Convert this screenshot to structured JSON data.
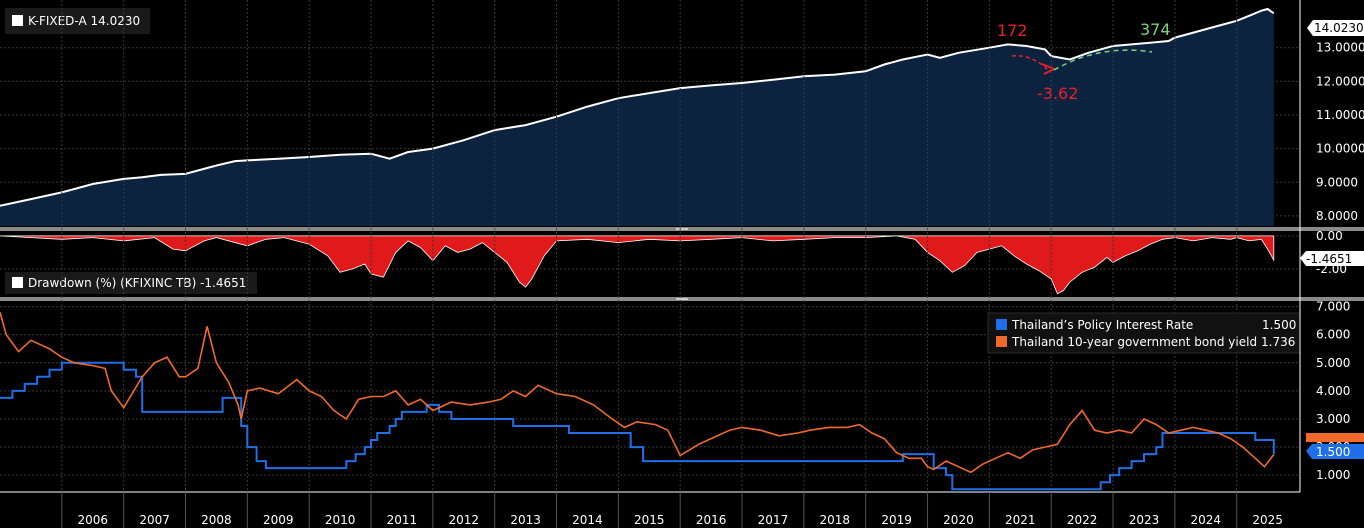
{
  "chart_data": [
    {
      "type": "area",
      "title": "K-FIXED-A 14.0230",
      "last_value_label": "14.0230",
      "ylim": [
        7.7,
        14.3
      ],
      "yticks": [
        "8.0000",
        "9.0000",
        "10.0000",
        "11.0000",
        "12.0000",
        "13.0000"
      ],
      "x": [
        2005.0,
        2005.5,
        2006.0,
        2006.5,
        2007.0,
        2007.3,
        2007.6,
        2008.0,
        2008.5,
        2008.8,
        2009.0,
        2009.5,
        2010.0,
        2010.5,
        2011.0,
        2011.3,
        2011.6,
        2012.0,
        2012.5,
        2013.0,
        2013.5,
        2014.0,
        2014.5,
        2015.0,
        2015.5,
        2016.0,
        2016.5,
        2017.0,
        2017.5,
        2018.0,
        2018.5,
        2019.0,
        2019.3,
        2019.6,
        2020.0,
        2020.2,
        2020.5,
        2021.0,
        2021.3,
        2021.6,
        2021.9,
        2022.0,
        2022.3,
        2022.6,
        2022.9,
        2023.0,
        2023.3,
        2023.6,
        2023.9,
        2024.0,
        2024.3,
        2024.6,
        2024.9,
        2025.0,
        2025.2,
        2025.4,
        2025.5,
        2025.6
      ],
      "values": [
        8.3,
        8.5,
        8.7,
        8.95,
        9.1,
        9.15,
        9.22,
        9.25,
        9.5,
        9.63,
        9.65,
        9.7,
        9.75,
        9.82,
        9.85,
        9.7,
        9.9,
        10.0,
        10.25,
        10.55,
        10.7,
        10.95,
        11.25,
        11.5,
        11.65,
        11.8,
        11.88,
        11.95,
        12.05,
        12.15,
        12.2,
        12.3,
        12.5,
        12.65,
        12.8,
        12.7,
        12.85,
        13.0,
        13.1,
        13.05,
        12.95,
        12.75,
        12.65,
        12.85,
        13.0,
        13.05,
        13.1,
        13.15,
        13.2,
        13.3,
        13.45,
        13.6,
        13.75,
        13.8,
        13.95,
        14.1,
        14.15,
        14.023
      ],
      "annotations": [
        {
          "text": "172",
          "color": "#e8202a"
        },
        {
          "text": "-3.62",
          "color": "#e8202a"
        },
        {
          "text": "374",
          "color": "#7cd27c"
        }
      ]
    },
    {
      "type": "area",
      "title": "Drawdown (%) (KFIXINC TB) -1.4651",
      "last_value_label": "-1.4651",
      "ylim": [
        -3.7,
        0.3
      ],
      "yticks": [
        "0.00",
        "-2.00"
      ],
      "x": [
        2005.0,
        2006.0,
        2006.5,
        2007.0,
        2007.5,
        2007.8,
        2008.0,
        2008.3,
        2008.5,
        2009.0,
        2009.3,
        2009.6,
        2010.0,
        2010.3,
        2010.5,
        2010.7,
        2010.9,
        2011.0,
        2011.2,
        2011.4,
        2011.6,
        2011.8,
        2012.0,
        2012.2,
        2012.4,
        2012.6,
        2012.8,
        2013.0,
        2013.2,
        2013.4,
        2013.5,
        2013.6,
        2013.8,
        2014.0,
        2014.5,
        2015.0,
        2015.5,
        2016.0,
        2016.5,
        2017.0,
        2017.5,
        2018.0,
        2018.5,
        2019.0,
        2019.5,
        2019.8,
        2020.0,
        2020.2,
        2020.4,
        2020.6,
        2020.8,
        2021.0,
        2021.2,
        2021.4,
        2021.6,
        2021.8,
        2022.0,
        2022.1,
        2022.2,
        2022.3,
        2022.5,
        2022.7,
        2022.9,
        2023.0,
        2023.2,
        2023.4,
        2023.6,
        2023.8,
        2024.0,
        2024.3,
        2024.6,
        2024.9,
        2025.0,
        2025.2,
        2025.4,
        2025.5,
        2025.6
      ],
      "values": [
        0,
        -0.2,
        -0.1,
        -0.3,
        -0.1,
        -0.8,
        -0.9,
        -0.3,
        -0.1,
        -0.6,
        -0.2,
        -0.1,
        -0.5,
        -1.2,
        -2.2,
        -2.0,
        -1.7,
        -2.3,
        -2.5,
        -1.0,
        -0.3,
        -0.7,
        -1.5,
        -0.6,
        -1.0,
        -0.8,
        -0.4,
        -1.0,
        -1.6,
        -2.8,
        -3.1,
        -2.6,
        -1.2,
        -0.3,
        -0.2,
        -0.4,
        -0.2,
        -0.3,
        -0.2,
        -0.1,
        -0.3,
        -0.2,
        -0.1,
        -0.1,
        0,
        -0.2,
        -1.0,
        -1.5,
        -2.2,
        -1.8,
        -1.0,
        -0.8,
        -0.6,
        -1.2,
        -1.7,
        -2.1,
        -2.6,
        -3.5,
        -3.3,
        -2.8,
        -2.2,
        -1.9,
        -1.3,
        -1.6,
        -1.2,
        -0.9,
        -0.5,
        -0.2,
        -0.1,
        -0.3,
        -0.1,
        -0.2,
        -0.1,
        -0.3,
        -0.2,
        -0.8,
        -1.465
      ]
    },
    {
      "type": "line",
      "legend_placement": "top-right",
      "ylim": [
        0.4,
        7.2
      ],
      "yticks": [
        "1.000",
        "2.000",
        "3.000",
        "4.000",
        "5.000",
        "6.000",
        "7.000"
      ],
      "xticks": [
        "2006",
        "2007",
        "2008",
        "2009",
        "2010",
        "2011",
        "2012",
        "2013",
        "2014",
        "2015",
        "2016",
        "2017",
        "2018",
        "2019",
        "2020",
        "2021",
        "2022",
        "2023",
        "2024",
        "2025"
      ],
      "xlim": [
        2005.0,
        2025.7
      ],
      "series": [
        {
          "name": "Thailand’s Policy Interest Rate",
          "last_value": "1.500",
          "color": "#1f6fe8",
          "step": true,
          "x": [
            2005.0,
            2005.2,
            2005.4,
            2005.6,
            2005.8,
            2006.0,
            2006.3,
            2006.8,
            2007.0,
            2007.2,
            2007.3,
            2008.0,
            2008.6,
            2008.9,
            2009.0,
            2009.15,
            2009.3,
            2010.0,
            2010.5,
            2010.6,
            2010.75,
            2010.9,
            2011.0,
            2011.1,
            2011.3,
            2011.4,
            2011.5,
            2011.9,
            2012.1,
            2012.3,
            2013.3,
            2014.2,
            2015.2,
            2015.4,
            2019.3,
            2019.6,
            2020.1,
            2020.3,
            2020.4,
            2022.6,
            2022.8,
            2022.95,
            2023.1,
            2023.3,
            2023.5,
            2023.7,
            2023.8,
            2025.0,
            2025.3,
            2025.6
          ],
          "values": [
            3.75,
            4.0,
            4.25,
            4.5,
            4.75,
            5.0,
            5.0,
            5.0,
            4.75,
            4.5,
            3.25,
            3.25,
            3.75,
            2.75,
            2.0,
            1.5,
            1.25,
            1.25,
            1.25,
            1.5,
            1.75,
            2.0,
            2.25,
            2.5,
            2.75,
            3.0,
            3.25,
            3.5,
            3.25,
            3.0,
            2.75,
            2.5,
            2.0,
            1.5,
            1.5,
            1.75,
            1.25,
            1.0,
            0.5,
            0.5,
            0.75,
            1.0,
            1.25,
            1.5,
            1.75,
            2.0,
            2.5,
            2.5,
            2.25,
            1.75
          ]
        },
        {
          "name": "Thailand 10-year government bond yield",
          "last_value": "1.736",
          "color": "#f06a2b",
          "step": false,
          "x": [
            2005.0,
            2005.1,
            2005.3,
            2005.5,
            2005.8,
            2006.0,
            2006.2,
            2006.5,
            2006.7,
            2006.8,
            2007.0,
            2007.3,
            2007.5,
            2007.7,
            2007.9,
            2008.0,
            2008.2,
            2008.35,
            2008.5,
            2008.7,
            2008.85,
            2008.9,
            2009.0,
            2009.2,
            2009.5,
            2009.8,
            2010.0,
            2010.2,
            2010.4,
            2010.6,
            2010.8,
            2011.0,
            2011.2,
            2011.4,
            2011.6,
            2011.8,
            2012.0,
            2012.3,
            2012.6,
            2012.9,
            2013.1,
            2013.3,
            2013.5,
            2013.7,
            2014.0,
            2014.3,
            2014.6,
            2014.9,
            2015.1,
            2015.3,
            2015.6,
            2015.8,
            2016.0,
            2016.3,
            2016.5,
            2016.8,
            2017.0,
            2017.3,
            2017.6,
            2017.9,
            2018.1,
            2018.4,
            2018.7,
            2018.9,
            2019.1,
            2019.3,
            2019.5,
            2019.7,
            2019.9,
            2020.0,
            2020.1,
            2020.3,
            2020.5,
            2020.7,
            2020.9,
            2021.1,
            2021.3,
            2021.5,
            2021.7,
            2021.9,
            2022.1,
            2022.3,
            2022.5,
            2022.7,
            2022.9,
            2023.1,
            2023.3,
            2023.5,
            2023.7,
            2023.9,
            2024.1,
            2024.3,
            2024.5,
            2024.7,
            2024.9,
            2025.1,
            2025.3,
            2025.45,
            2025.6
          ],
          "values": [
            6.8,
            6.0,
            5.4,
            5.8,
            5.5,
            5.2,
            5.0,
            4.9,
            4.8,
            4.0,
            3.4,
            4.5,
            5.0,
            5.2,
            4.5,
            4.5,
            4.8,
            6.3,
            5.0,
            4.3,
            3.5,
            3.0,
            4.0,
            4.1,
            3.9,
            4.4,
            4.0,
            3.8,
            3.3,
            3.0,
            3.7,
            3.8,
            3.8,
            4.0,
            3.5,
            3.7,
            3.3,
            3.6,
            3.5,
            3.6,
            3.7,
            4.0,
            3.8,
            4.2,
            3.9,
            3.8,
            3.5,
            3.0,
            2.7,
            2.9,
            2.8,
            2.6,
            1.7,
            2.1,
            2.3,
            2.6,
            2.7,
            2.6,
            2.4,
            2.5,
            2.6,
            2.7,
            2.7,
            2.8,
            2.5,
            2.3,
            1.8,
            1.6,
            1.6,
            1.3,
            1.2,
            1.5,
            1.3,
            1.1,
            1.4,
            1.6,
            1.8,
            1.6,
            1.9,
            2.0,
            2.1,
            2.8,
            3.3,
            2.6,
            2.5,
            2.6,
            2.5,
            3.0,
            2.8,
            2.5,
            2.6,
            2.7,
            2.6,
            2.5,
            2.3,
            2.0,
            1.6,
            1.3,
            1.736
          ]
        }
      ]
    }
  ]
}
